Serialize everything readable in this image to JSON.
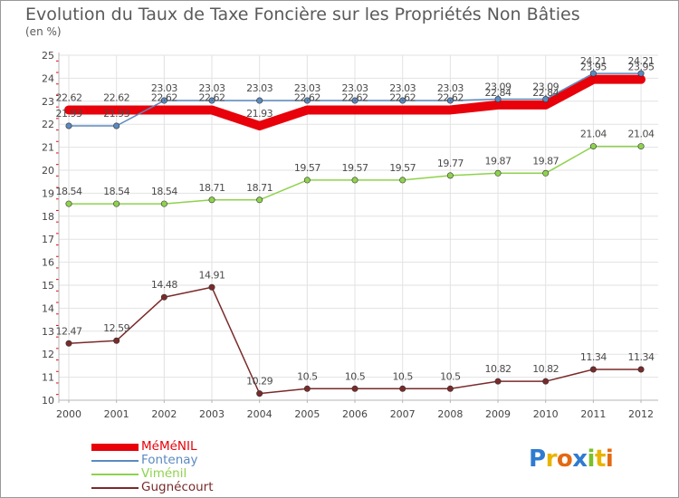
{
  "chart_data": {
    "type": "line",
    "title": "Evolution du Taux de Taxe Foncière sur les Propriétés Non Bâties",
    "subtitle": "(en %)",
    "xlabel": "",
    "ylabel": "",
    "ylim": [
      10,
      25
    ],
    "yticks": [
      10,
      11,
      12,
      13,
      14,
      15,
      16,
      17,
      18,
      19,
      20,
      21,
      22,
      23,
      24,
      25
    ],
    "grid": true,
    "x": [
      "2000",
      "2001",
      "2002",
      "2003",
      "2004",
      "2005",
      "2006",
      "2007",
      "2008",
      "2009",
      "2010",
      "2011",
      "2012"
    ],
    "series": [
      {
        "name": "MéMéNIL",
        "color": "#e8000a",
        "values": [
          22.62,
          22.62,
          22.62,
          22.62,
          21.93,
          22.62,
          22.62,
          22.62,
          22.62,
          22.84,
          22.84,
          23.95,
          23.95
        ],
        "labels": [
          "22.62",
          "22.62",
          "22.62",
          "22.62",
          "21.93",
          "22.62",
          "22.62",
          "22.62",
          "22.62",
          "22.84",
          "22.84",
          "23.95",
          "23.95"
        ]
      },
      {
        "name": "Fontenay",
        "color": "#5b8ac0",
        "values": [
          21.93,
          21.93,
          23.03,
          23.03,
          23.03,
          23.03,
          23.03,
          23.03,
          23.03,
          23.09,
          23.09,
          24.21,
          24.21
        ],
        "labels": [
          "21.93",
          "21.93",
          "23.03",
          "23.03",
          "23.03",
          "23.03",
          "23.03",
          "23.03",
          "23.03",
          "23.09",
          "23.09",
          "24.21",
          "24.21"
        ]
      },
      {
        "name": "Viménil",
        "color": "#8fd24e",
        "values": [
          18.54,
          18.54,
          18.54,
          18.71,
          18.71,
          19.57,
          19.57,
          19.57,
          19.77,
          19.87,
          19.87,
          21.04,
          21.04
        ],
        "labels": [
          "18.54",
          "18.54",
          "18.54",
          "18.71",
          "18.71",
          "19.57",
          "19.57",
          "19.57",
          "19.77",
          "19.87",
          "19.87",
          "21.04",
          "21.04"
        ]
      },
      {
        "name": "Gugnécourt",
        "color": "#7a2a2a",
        "values": [
          12.47,
          12.59,
          14.48,
          14.91,
          10.29,
          10.5,
          10.5,
          10.5,
          10.5,
          10.82,
          10.82,
          11.34,
          11.34
        ],
        "labels": [
          "12.47",
          "12.59",
          "14.48",
          "14.91",
          "10.29",
          "10.5",
          "10.5",
          "10.5",
          "10.5",
          "10.82",
          "10.82",
          "11.34",
          "11.34"
        ]
      }
    ]
  },
  "colors": {
    "title_text": "#5a5a5a",
    "axis_text": "#444444",
    "grid": "#e2e2e2",
    "axis_line": "#b5b5b5",
    "tick": "#e8000a"
  },
  "brand": {
    "letters": [
      "P",
      "r",
      "o",
      "x",
      "i",
      "t",
      "i"
    ],
    "colors": [
      "#2f7bd1",
      "#e8b400",
      "#e36a12",
      "#2f7bd1",
      "#7bbf2a",
      "#e8b400",
      "#e36a12"
    ]
  }
}
